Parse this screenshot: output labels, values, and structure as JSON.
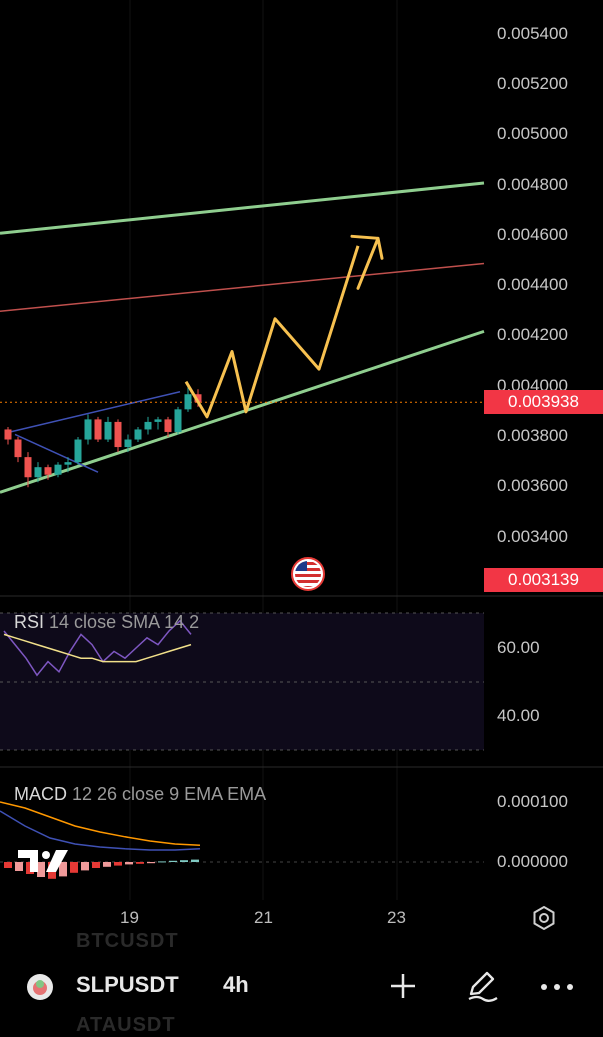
{
  "price_axis": {
    "labels": [
      "0.005400",
      "0.005200",
      "0.005000",
      "0.004800",
      "0.004600",
      "0.004400",
      "0.004200",
      "0.004000",
      "0.003800",
      "0.003600",
      "0.003400"
    ],
    "current_price_tag": "0.003938",
    "lower_tag": "0.003139"
  },
  "rsi": {
    "title": "RSI",
    "params": "14 close SMA 14 2",
    "levels": [
      "60.00",
      "40.00"
    ]
  },
  "macd": {
    "title": "MACD",
    "params": "12 26 close 9 EMA EMA",
    "levels": [
      "0.000100",
      "0.000000"
    ]
  },
  "x_axis": {
    "labels": [
      "19",
      "21",
      "23"
    ]
  },
  "bottom_bar": {
    "symbol": "SLPUSDT",
    "timeframe": "4h",
    "ghost_above": "BTCUSDT",
    "ghost_below": "ATAUSDT"
  },
  "colors": {
    "up": "#26a69a",
    "down": "#ef5350",
    "channel": "#8fce8f",
    "midline": "#c0504d",
    "projection": "#f7c150",
    "rsi_line": "#7e57c2",
    "rsi_sma": "#f1e08a",
    "tag": "#f23645"
  },
  "chart_data": {
    "type": "candlestick",
    "x_ticks": [
      "19",
      "21",
      "23"
    ],
    "y_ticks": [
      "0.003400",
      "0.003600",
      "0.003800",
      "0.004000",
      "0.004200",
      "0.004400",
      "0.004600",
      "0.004800",
      "0.005000",
      "0.005200",
      "0.005400"
    ],
    "last_price": 0.003938,
    "candles_ohlc": [
      [
        0.00383,
        0.00384,
        0.00377,
        0.00379
      ],
      [
        0.00379,
        0.0038,
        0.0037,
        0.00372
      ],
      [
        0.00372,
        0.00374,
        0.0036,
        0.00364
      ],
      [
        0.00364,
        0.0037,
        0.00362,
        0.00368
      ],
      [
        0.00368,
        0.00369,
        0.00363,
        0.00365
      ],
      [
        0.00365,
        0.0037,
        0.00364,
        0.00369
      ],
      [
        0.00369,
        0.00372,
        0.00366,
        0.0037
      ],
      [
        0.0037,
        0.0038,
        0.00369,
        0.00379
      ],
      [
        0.00379,
        0.00389,
        0.00377,
        0.00387
      ],
      [
        0.00387,
        0.00388,
        0.00378,
        0.00379
      ],
      [
        0.00379,
        0.00388,
        0.00378,
        0.00386
      ],
      [
        0.00386,
        0.00387,
        0.00374,
        0.00376
      ],
      [
        0.00376,
        0.00381,
        0.00374,
        0.00379
      ],
      [
        0.00379,
        0.00384,
        0.00378,
        0.00383
      ],
      [
        0.00383,
        0.00388,
        0.00381,
        0.00386
      ],
      [
        0.00386,
        0.00388,
        0.00383,
        0.00387
      ],
      [
        0.00387,
        0.00388,
        0.0038,
        0.00382
      ],
      [
        0.00382,
        0.00392,
        0.00381,
        0.00391
      ],
      [
        0.00391,
        0.00401,
        0.0039,
        0.00397
      ],
      [
        0.00397,
        0.00399,
        0.00392,
        0.003938
      ]
    ],
    "projection_path": [
      0.00388,
      0.00414,
      0.0039,
      0.00427,
      0.00407,
      0.00456
    ],
    "channel_upper": [
      0.00461,
      0.00481
    ],
    "channel_lower": [
      0.00358,
      0.00422
    ],
    "mid_line": [
      0.0043,
      0.00449
    ],
    "rsi_values": [
      65,
      61,
      57,
      52,
      56,
      53,
      59,
      64,
      61,
      56,
      59,
      57,
      60,
      63,
      61,
      65,
      68,
      64
    ],
    "rsi_sma_values": [
      64,
      63,
      62,
      61,
      60,
      59,
      58,
      57,
      57,
      56,
      56,
      56,
      56,
      57,
      58,
      59,
      60,
      61
    ],
    "macd_histogram": [
      -1e-05,
      -1.5e-05,
      -2e-05,
      -2.5e-05,
      -2.8e-05,
      -2.4e-05,
      -1.8e-05,
      -1.4e-05,
      -1e-05,
      -8e-06,
      -6e-06,
      -4e-06,
      -3e-06,
      -2e-06,
      1e-06,
      2e-06,
      3e-06,
      4e-06
    ],
    "macd_line": [
      8.5e-05,
      6e-05,
      4e-05,
      3e-05,
      2.5e-05,
      2.2e-05,
      2e-05,
      2e-05,
      2.2e-05
    ],
    "macd_signal": [
      0.0001,
      9e-05,
      7.5e-05,
      6e-05,
      5e-05,
      4.2e-05,
      3.5e-05,
      3e-05,
      2.8e-05
    ]
  }
}
